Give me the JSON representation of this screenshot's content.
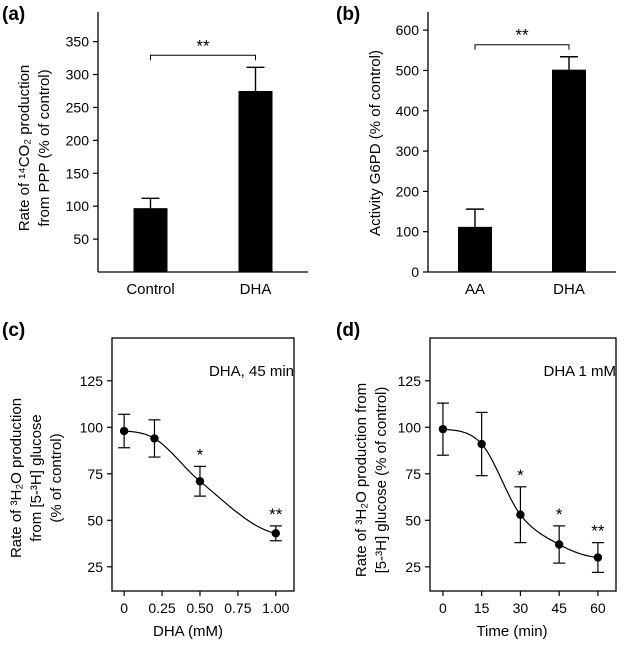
{
  "chart_data": [
    {
      "panel": "(a)",
      "type": "bar",
      "categories": [
        "Control",
        "DHA"
      ],
      "values": [
        97,
        275
      ],
      "errors": [
        15,
        36
      ],
      "ylabel_line1": "Rate of ¹⁴CO₂ production",
      "ylabel_line2": "from PPP  (% of control)",
      "xlabel": "",
      "yticks": [
        50,
        100,
        150,
        200,
        250,
        300,
        350
      ],
      "ylim": [
        0,
        395
      ],
      "significance": "**",
      "bar_color": "#000000"
    },
    {
      "panel": "(b)",
      "type": "bar",
      "categories": [
        "AA",
        "DHA"
      ],
      "values": [
        112,
        502
      ],
      "errors": [
        44,
        32
      ],
      "ylabel_line1": "Activity G6PD (% of control)",
      "ylabel_line2": "",
      "xlabel": "",
      "yticks": [
        0,
        100,
        200,
        300,
        400,
        500,
        600
      ],
      "ylim": [
        0,
        645
      ],
      "significance": "**",
      "bar_color": "#000000"
    },
    {
      "panel": "(c)",
      "type": "line",
      "x": [
        0,
        0.2,
        0.5,
        1.0
      ],
      "y": [
        98,
        94,
        71,
        43
      ],
      "errors": [
        9,
        10,
        8,
        4
      ],
      "stars": [
        "",
        "",
        "*",
        "**"
      ],
      "xticks": [
        "0",
        "0.25",
        "0.50",
        "0.75",
        "1.00"
      ],
      "xtick_values": [
        0,
        0.25,
        0.5,
        0.75,
        1.0
      ],
      "xlim": [
        -0.08,
        1.12
      ],
      "ylim": [
        12,
        148
      ],
      "yticks": [
        25,
        50,
        75,
        100,
        125
      ],
      "xlabel": "DHA (mM)",
      "ylabel_line1": "Rate of ³H₂O production",
      "ylabel_line2": "from [5-³H] glucose",
      "ylabel_line3": "(% of control)",
      "annotation": "DHA, 45 min"
    },
    {
      "panel": "(d)",
      "type": "line",
      "x": [
        0,
        15,
        30,
        45,
        60
      ],
      "y": [
        99,
        91,
        53,
        37,
        30
      ],
      "errors": [
        14,
        17,
        15,
        10,
        8
      ],
      "stars": [
        "",
        "",
        "*",
        "*",
        "**"
      ],
      "xticks": [
        "0",
        "15",
        "30",
        "45",
        "60"
      ],
      "xtick_values": [
        0,
        15,
        30,
        45,
        60
      ],
      "xlim": [
        -5,
        67
      ],
      "ylim": [
        12,
        148
      ],
      "yticks": [
        25,
        50,
        75,
        100,
        125
      ],
      "xlabel": "Time (min)",
      "ylabel_line1": "Rate of ³H₂O production from",
      "ylabel_line2": "[5-³H] glucose  (% of control)",
      "ylabel_line3": "",
      "annotation": "DHA 1 mM"
    }
  ]
}
